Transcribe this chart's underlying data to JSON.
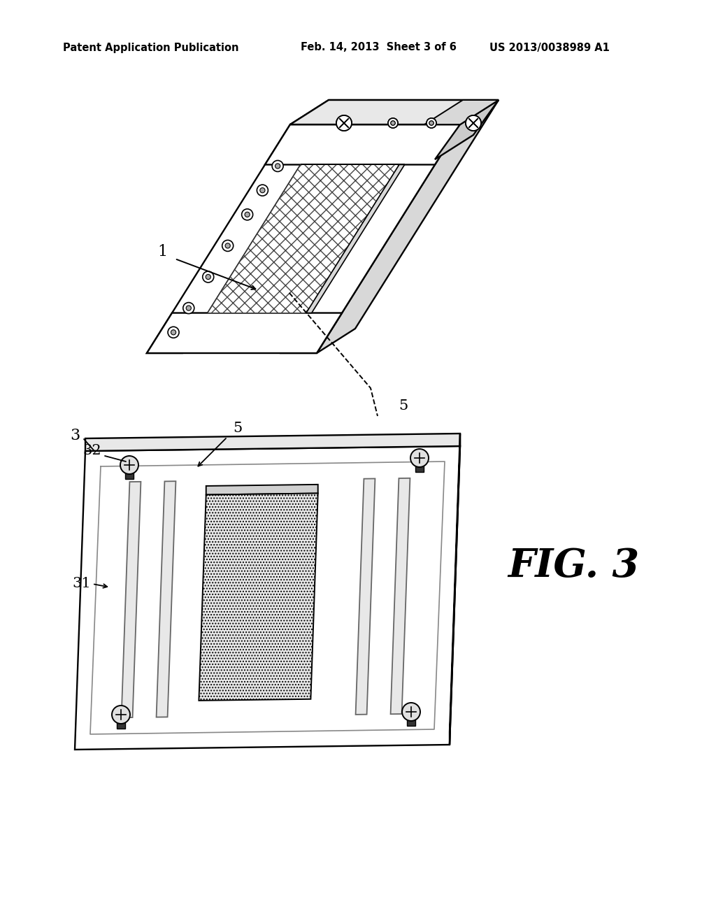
{
  "title_left": "Patent Application Publication",
  "title_mid": "Feb. 14, 2013  Sheet 3 of 6",
  "title_right": "US 2013/0038989 A1",
  "fig_label": "FIG. 3",
  "bg_color": "#ffffff",
  "label_1": "1",
  "label_3": "3",
  "label_31": "31",
  "label_32": "32",
  "label_5a": "5",
  "label_5b": "5"
}
